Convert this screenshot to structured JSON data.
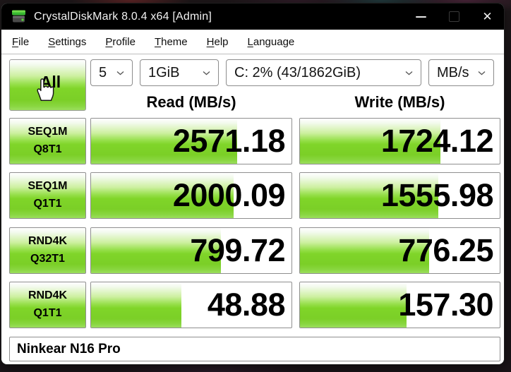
{
  "window": {
    "title": "CrystalDiskMark 8.0.4 x64 [Admin]",
    "icons": {
      "app_icon": "crystaldiskmark-disk-icon",
      "minimize": "minimize-icon",
      "maximize": "maximize-icon",
      "close": "close-icon"
    },
    "close_glyph": "✕"
  },
  "menu": {
    "items": [
      "File",
      "Settings",
      "Profile",
      "Theme",
      "Help",
      "Language"
    ]
  },
  "controls": {
    "all_button": "All",
    "test_count": "5",
    "test_size": "1GiB",
    "drive": "C: 2% (43/1862GiB)",
    "unit": "MB/s"
  },
  "headers": {
    "read": "Read (MB/s)",
    "write": "Write (MB/s)"
  },
  "rows": [
    {
      "label_top": "SEQ1M",
      "label_bottom": "Q8T1",
      "read": "2571.18",
      "write": "1724.12"
    },
    {
      "label_top": "SEQ1M",
      "label_bottom": "Q1T1",
      "read": "2000.09",
      "write": "1555.98"
    },
    {
      "label_top": "RND4K",
      "label_bottom": "Q32T1",
      "read": "799.72",
      "write": "776.25"
    },
    {
      "label_top": "RND4K",
      "label_bottom": "Q1T1",
      "read": "48.88",
      "write": "157.30"
    }
  ],
  "footer": {
    "comment": "Ninkear N16 Pro"
  },
  "colors": {
    "accent_green": "#7fd528",
    "titlebar": "#000000",
    "border_gray": "#8f8f8f"
  }
}
